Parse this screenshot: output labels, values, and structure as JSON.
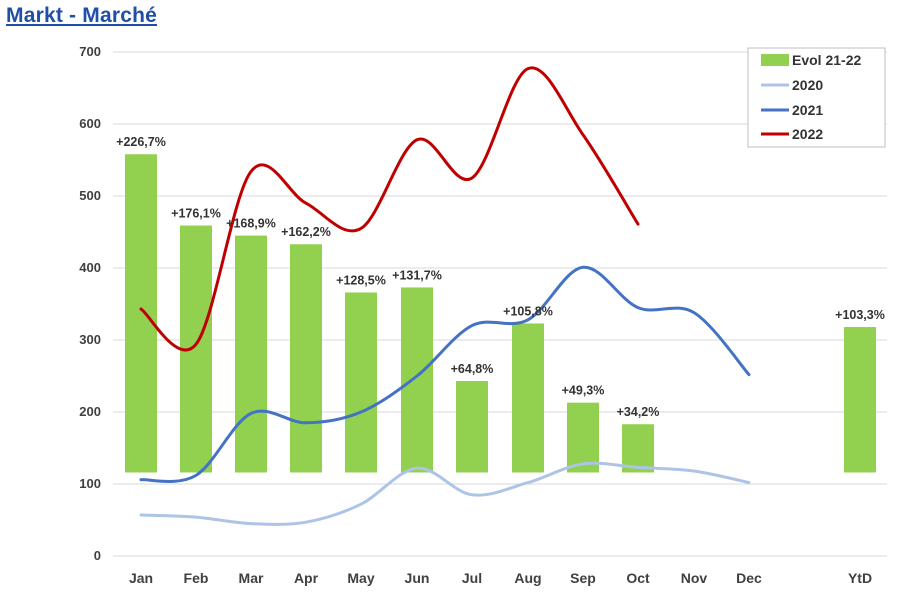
{
  "page": {
    "title": "Markt - Marché"
  },
  "colors": {
    "bar": "#92d050",
    "series_2020": "#adc4e7",
    "series_2021": "#4472c4",
    "series_2022": "#c00000",
    "grid": "#d9d9d9"
  },
  "chart_data": {
    "type": "bar",
    "title": "",
    "xlabel": "",
    "ylabel": "",
    "ylim": [
      0,
      700
    ],
    "yticks": [
      0,
      100,
      200,
      300,
      400,
      500,
      600,
      700
    ],
    "grid": "horizontal",
    "legend_position": "top-right",
    "categories": [
      "Jan",
      "Feb",
      "Mar",
      "Apr",
      "May",
      "Jun",
      "Jul",
      "Aug",
      "Sep",
      "Oct",
      "Nov",
      "Dec",
      "YtD"
    ],
    "bar_series": {
      "name": "Evol 21-22",
      "baseline": 116,
      "values": [
        558,
        459,
        445,
        433,
        366,
        373,
        243,
        323,
        213,
        183,
        null,
        null,
        318
      ],
      "labels": [
        "+226,7%",
        "+176,1%",
        "+168,9%",
        "+162,2%",
        "+128,5%",
        "+131,7%",
        "+64,8%",
        "+105,8%",
        "+49,3%",
        "+34,2%",
        "",
        "",
        "+103,3%"
      ]
    },
    "line_series": [
      {
        "name": "2020",
        "values": [
          57,
          54,
          45,
          47,
          72,
          122,
          85,
          102,
          128,
          123,
          118,
          102,
          null
        ]
      },
      {
        "name": "2021",
        "values": [
          106,
          112,
          198,
          185,
          200,
          250,
          320,
          328,
          401,
          345,
          338,
          252,
          null
        ]
      },
      {
        "name": "2022",
        "values": [
          343,
          294,
          534,
          490,
          455,
          578,
          525,
          677,
          585,
          461,
          null,
          null,
          null
        ]
      }
    ]
  }
}
